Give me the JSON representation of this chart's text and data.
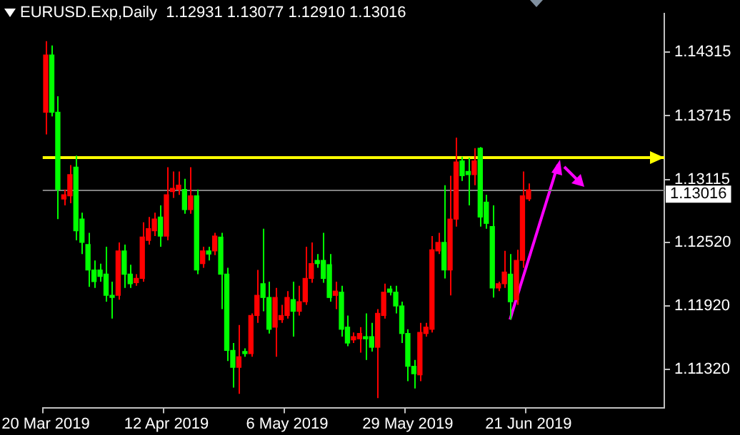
{
  "chart_data": {
    "type": "candlestick",
    "title": "EURUSD.Exp,Daily  1.12931 1.13077 1.12910 1.13016",
    "categories": [
      "20 Mar 2019",
      null,
      null,
      null,
      null,
      null,
      null,
      null,
      null,
      null,
      null,
      null,
      null,
      null,
      null,
      null,
      null,
      null,
      null,
      null,
      "12 Apr 2019",
      null,
      null,
      null,
      null,
      null,
      null,
      null,
      null,
      null,
      null,
      null,
      null,
      null,
      null,
      null,
      null,
      null,
      null,
      null,
      "6 May 2019",
      null,
      null,
      null,
      null,
      null,
      null,
      null,
      null,
      null,
      null,
      null,
      null,
      null,
      null,
      null,
      null,
      null,
      null,
      null,
      "29 May 2019",
      null,
      null,
      null,
      null,
      null,
      null,
      null,
      null,
      null,
      null,
      null,
      null,
      null,
      null,
      null,
      null,
      null,
      null,
      null,
      "21 Jun 2019",
      null,
      null,
      null,
      null,
      null,
      null,
      null,
      null,
      null,
      null,
      null,
      null,
      null,
      null,
      null,
      null,
      null,
      null,
      null,
      null,
      null,
      null
    ],
    "ohlc": [
      [
        1.1375,
        1.1442,
        1.1354,
        1.1429
      ],
      [
        1.1429,
        1.1438,
        1.1371,
        1.1375
      ],
      [
        1.1375,
        1.139,
        1.1274,
        1.1302
      ],
      [
        1.1293,
        1.1302,
        1.1287,
        1.1297
      ],
      [
        1.1296,
        1.1325,
        1.1289,
        1.1316
      ],
      [
        1.1323,
        1.1334,
        1.1254,
        1.1263
      ],
      [
        1.1274,
        1.128,
        1.1241,
        1.1252
      ],
      [
        1.125,
        1.1261,
        1.121,
        1.1226
      ],
      [
        1.1226,
        1.1235,
        1.1209,
        1.1215
      ],
      [
        1.1226,
        1.1232,
        1.1215,
        1.122
      ],
      [
        1.1222,
        1.1248,
        1.1196,
        1.1202
      ],
      [
        1.1202,
        1.1215,
        1.118,
        1.12
      ],
      [
        1.1202,
        1.1252,
        1.1198,
        1.1244
      ],
      [
        1.1244,
        1.125,
        1.1209,
        1.1222
      ],
      [
        1.1222,
        1.1231,
        1.1209,
        1.1213
      ],
      [
        1.1214,
        1.1222,
        1.1211,
        1.1218
      ],
      [
        1.1218,
        1.1271,
        1.1215,
        1.1257
      ],
      [
        1.1254,
        1.1276,
        1.125,
        1.1265
      ],
      [
        1.1263,
        1.128,
        1.1258,
        1.1274
      ],
      [
        1.1276,
        1.1287,
        1.1248,
        1.1258
      ],
      [
        1.1258,
        1.1323,
        1.1254,
        1.1297
      ],
      [
        1.13,
        1.1319,
        1.1294,
        1.1303
      ],
      [
        1.1302,
        1.1319,
        1.1297,
        1.1306
      ],
      [
        1.1302,
        1.1312,
        1.1279,
        1.1283
      ],
      [
        1.1283,
        1.1323,
        1.1279,
        1.1296
      ],
      [
        1.1296,
        1.1302,
        1.1222,
        1.1226
      ],
      [
        1.1232,
        1.1248,
        1.1228,
        1.1244
      ],
      [
        1.1244,
        1.1248,
        1.1235,
        1.1241
      ],
      [
        1.1244,
        1.1261,
        1.124,
        1.1258
      ],
      [
        1.1257,
        1.1261,
        1.1189,
        1.1222
      ],
      [
        1.1222,
        1.1228,
        1.114,
        1.115
      ],
      [
        1.115,
        1.1157,
        1.1115,
        1.1134
      ],
      [
        1.1134,
        1.1174,
        1.1109,
        1.1144
      ],
      [
        1.1149,
        1.1152,
        1.1144,
        1.1147
      ],
      [
        1.1147,
        1.1185,
        1.1144,
        1.1183
      ],
      [
        1.1183,
        1.1226,
        1.1176,
        1.1202
      ],
      [
        1.1213,
        1.1265,
        1.1187,
        1.12
      ],
      [
        1.12,
        1.1215,
        1.1166,
        1.117
      ],
      [
        1.1172,
        1.1209,
        1.1144,
        1.12
      ],
      [
        1.1179,
        1.1193,
        1.1176,
        1.1183
      ],
      [
        1.1183,
        1.1206,
        1.118,
        1.12
      ],
      [
        1.1198,
        1.1215,
        1.1163,
        1.1187
      ],
      [
        1.1187,
        1.1211,
        1.1183,
        1.1196
      ],
      [
        1.1196,
        1.1248,
        1.1193,
        1.1218
      ],
      [
        1.1218,
        1.1252,
        1.1214,
        1.1232
      ],
      [
        1.1235,
        1.1241,
        1.1228,
        1.1232
      ],
      [
        1.1235,
        1.1261,
        1.1214,
        1.1218
      ],
      [
        1.1231,
        1.1241,
        1.1196,
        1.12
      ],
      [
        1.1202,
        1.1215,
        1.1189,
        1.1206
      ],
      [
        1.1205,
        1.1211,
        1.1163,
        1.117
      ],
      [
        1.1172,
        1.1183,
        1.1154,
        1.1157
      ],
      [
        1.116,
        1.1167,
        1.1157,
        1.1163
      ],
      [
        1.1161,
        1.1172,
        1.1148,
        1.1166
      ],
      [
        1.1163,
        1.1185,
        1.1141,
        1.1161
      ],
      [
        1.1163,
        1.1176,
        1.1149,
        1.1153
      ],
      [
        1.1153,
        1.1189,
        1.1105,
        1.1185
      ],
      [
        1.1183,
        1.1213,
        1.118,
        1.1205
      ],
      [
        1.1208,
        1.1211,
        1.1202,
        1.1205
      ],
      [
        1.1205,
        1.1211,
        1.1185,
        1.1192
      ],
      [
        1.1192,
        1.1196,
        1.1157,
        1.1166
      ],
      [
        1.1166,
        1.117,
        1.1121,
        1.1135
      ],
      [
        1.1135,
        1.1141,
        1.1114,
        1.1128
      ],
      [
        1.1127,
        1.1176,
        1.1121,
        1.1167
      ],
      [
        1.1166,
        1.1176,
        1.1163,
        1.1172
      ],
      [
        1.117,
        1.1258,
        1.1167,
        1.1245
      ],
      [
        1.1244,
        1.1261,
        1.1241,
        1.1252
      ],
      [
        1.1252,
        1.1306,
        1.1218,
        1.1226
      ],
      [
        1.1226,
        1.1315,
        1.1202,
        1.1274
      ],
      [
        1.1274,
        1.1351,
        1.1267,
        1.1328
      ],
      [
        1.1329,
        1.1333,
        1.131,
        1.1315
      ],
      [
        1.1319,
        1.1332,
        1.1287,
        1.1316
      ],
      [
        1.1316,
        1.1341,
        1.1306,
        1.1329
      ],
      [
        1.1341,
        1.1342,
        1.1267,
        1.1276
      ],
      [
        1.129,
        1.1297,
        1.1265,
        1.127
      ],
      [
        1.1267,
        1.1287,
        1.12,
        1.1209
      ],
      [
        1.1209,
        1.1215,
        1.1206,
        1.1213
      ],
      [
        1.1213,
        1.1244,
        1.1209,
        1.1224
      ],
      [
        1.1222,
        1.1241,
        1.1179,
        1.1196
      ],
      [
        1.1198,
        1.1245,
        1.1193,
        1.1235
      ],
      [
        1.1235,
        1.1319,
        1.1228,
        1.1296
      ],
      [
        1.12931,
        1.13077,
        1.1291,
        1.13016
      ],
      null,
      null,
      null,
      null,
      null,
      null,
      null,
      null,
      null,
      null,
      null,
      null,
      null,
      null,
      null,
      null,
      null,
      null,
      null,
      null,
      null,
      null
    ],
    "colors": [
      "#ff0000",
      "#00ff00",
      "#00ff00",
      "#ff0000",
      "#ff0000",
      "#00ff00",
      "#00ff00",
      "#00ff00",
      "#00ff00",
      "#00ff00",
      "#00ff00",
      "#00ff00",
      "#ff0000",
      "#00ff00",
      "#00ff00",
      "#ff0000",
      "#ff0000",
      "#ff0000",
      "#ff0000",
      "#00ff00",
      "#ff0000",
      "#ff0000",
      "#ff0000",
      "#00ff00",
      "#ff0000",
      "#00ff00",
      "#ff0000",
      "#00ff00",
      "#ff0000",
      "#00ff00",
      "#00ff00",
      "#00ff00",
      "#ff0000",
      "#00ff00",
      "#ff0000",
      "#ff0000",
      "#00ff00",
      "#00ff00",
      "#ff0000",
      "#ff0000",
      "#ff0000",
      "#00ff00",
      "#ff0000",
      "#ff0000",
      "#ff0000",
      "#00ff00",
      "#00ff00",
      "#00ff00",
      "#ff0000",
      "#00ff00",
      "#00ff00",
      "#ff0000",
      "#ff0000",
      "#00ff00",
      "#00ff00",
      "#ff0000",
      "#ff0000",
      "#00ff00",
      "#00ff00",
      "#00ff00",
      "#00ff00",
      "#00ff00",
      "#ff0000",
      "#ff0000",
      "#ff0000",
      "#ff0000",
      "#00ff00",
      "#ff0000",
      "#ff0000",
      "#00ff00",
      "#00ff00",
      "#ff0000",
      "#00ff00",
      "#00ff00",
      "#00ff00",
      "#ff0000",
      "#ff0000",
      "#00ff00",
      "#ff0000",
      "#ff0000",
      "#ff0000",
      null,
      null,
      null,
      null,
      null,
      null,
      null,
      null,
      null,
      null,
      null,
      null,
      null,
      null,
      null,
      null,
      null,
      null,
      null,
      null,
      null,
      null
    ],
    "ylim": [
      1.1096,
      1.1468
    ],
    "yticks": [
      1.14315,
      1.13715,
      1.13115,
      {
        "value": 1.1252,
        "label": "1.12520"
      },
      {
        "value": 1.1192,
        "label": "1.11920"
      },
      {
        "value": 1.1132,
        "label": "1.11320"
      }
    ],
    "ref_lines": [
      {
        "axis": "y",
        "value": 1.13016,
        "label": "1.13016",
        "color": "#808080"
      },
      {
        "axis": "y",
        "value": 1.1333,
        "color": "#ffff00"
      }
    ],
    "legend": false
  }
}
